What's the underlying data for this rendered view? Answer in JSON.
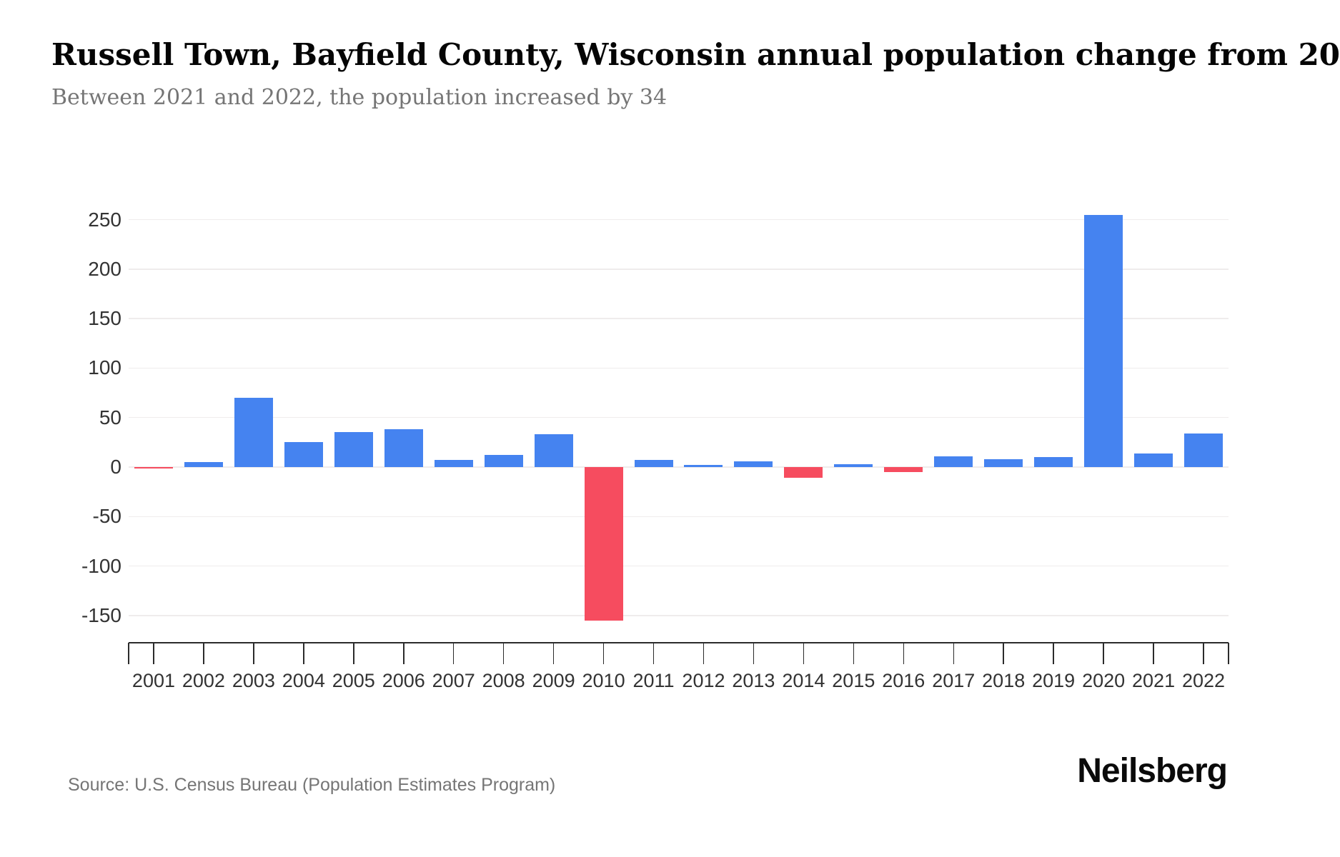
{
  "chart_data": {
    "type": "bar",
    "title": "Russell Town, Bayfield County, Wisconsin annual population change from 20",
    "subtitle": "Between 2021 and 2022, the population increased by 34",
    "categories": [
      "2001",
      "2002",
      "2003",
      "2004",
      "2005",
      "2006",
      "2007",
      "2008",
      "2009",
      "2010",
      "2011",
      "2012",
      "2013",
      "2014",
      "2015",
      "2016",
      "2017",
      "2018",
      "2019",
      "2020",
      "2021",
      "2022"
    ],
    "values": [
      -1,
      5,
      70,
      25,
      35,
      38,
      7,
      12,
      33,
      -155,
      7,
      2,
      6,
      -11,
      3,
      -5,
      11,
      8,
      10,
      255,
      14,
      34
    ],
    "xlabel": "",
    "ylabel": "",
    "yticks": [
      250,
      200,
      150,
      100,
      50,
      0,
      -50,
      -100,
      -150
    ],
    "ylim": [
      -175,
      270
    ],
    "grid": true,
    "legend": false,
    "colors": {
      "positive": "#4583F0",
      "negative": "#F64C5F"
    },
    "gridline_color": "#efecec",
    "axis_color": "#2b2b2b",
    "tick_label_color": "#333333"
  },
  "footer": {
    "source": "Source: U.S. Census Bureau (Population Estimates Program)",
    "brand": "Neilsberg"
  }
}
